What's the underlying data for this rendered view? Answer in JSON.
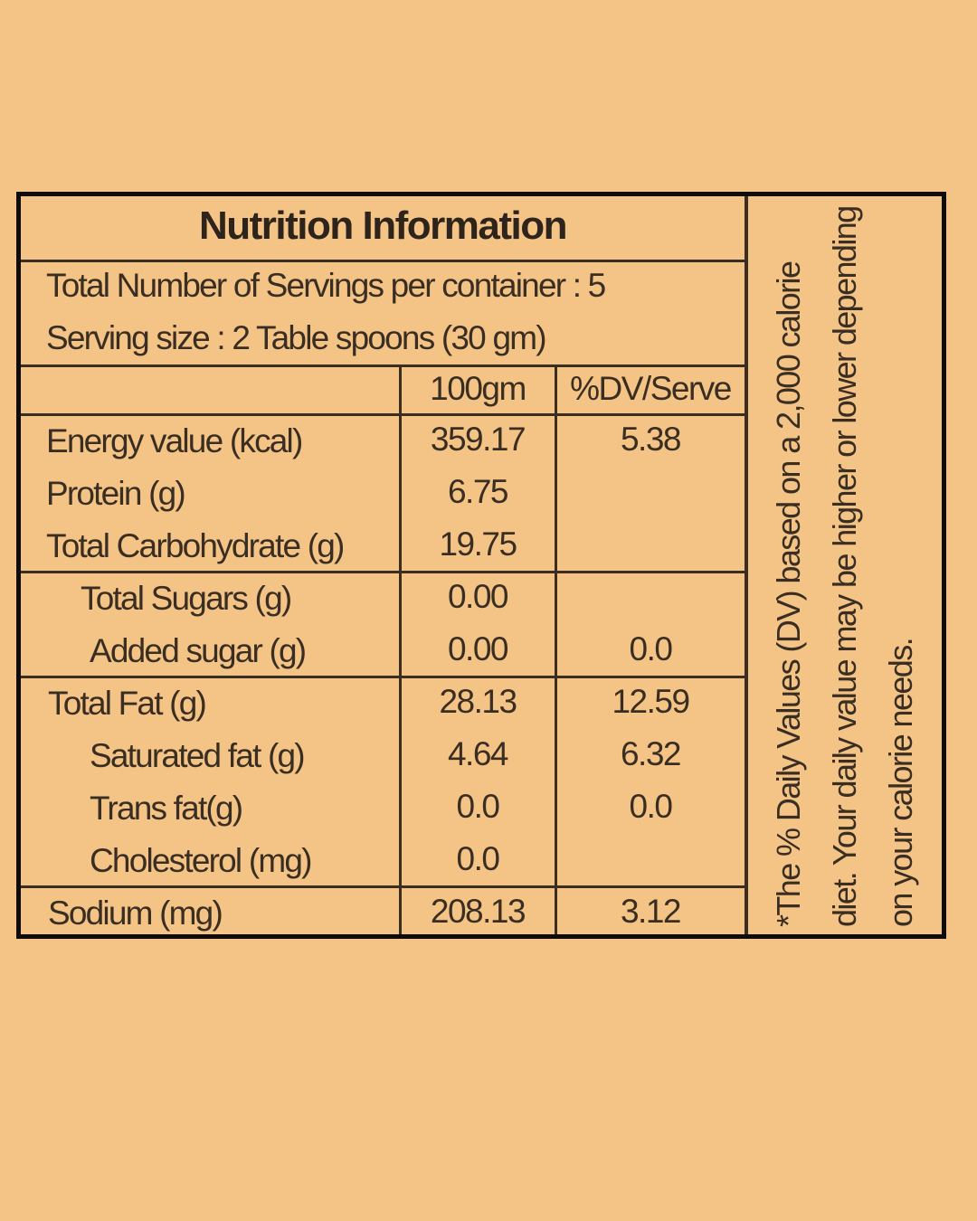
{
  "title": "Nutrition Information",
  "servings_per_container": "Total Number of Servings per container : 5",
  "serving_size": "Serving size :   2 Table spoons (30 gm)",
  "columns": [
    "100gm",
    "%DV/Serve"
  ],
  "rows": [
    {
      "name": "Energy value (kcal)",
      "per100": "359.17",
      "dv": "5.38"
    },
    {
      "name": "Protein (g)",
      "per100": "6.75",
      "dv": ""
    },
    {
      "name": "Total Carbohydrate (g)",
      "per100": "19.75",
      "dv": ""
    },
    {
      "name": "Total Sugars (g)",
      "per100": "0.00",
      "dv": ""
    },
    {
      "name": "Added sugar (g)",
      "per100": "0.00",
      "dv": "0.0"
    },
    {
      "name": "Total Fat (g)",
      "per100": "28.13",
      "dv": "12.59"
    },
    {
      "name": "Saturated fat (g)",
      "per100": "4.64",
      "dv": "6.32"
    },
    {
      "name": "Trans fat(g)",
      "per100": "0.0",
      "dv": "0.0"
    },
    {
      "name": "Cholesterol (mg)",
      "per100": "0.0",
      "dv": ""
    },
    {
      "name": "Sodium (mg)",
      "per100": "208.13",
      "dv": "3.12"
    }
  ],
  "footnote": "*The % Daily Values (DV) based on a 2,000 calorie diet. Your daily value may be higher or lower depending on your calorie needs."
}
